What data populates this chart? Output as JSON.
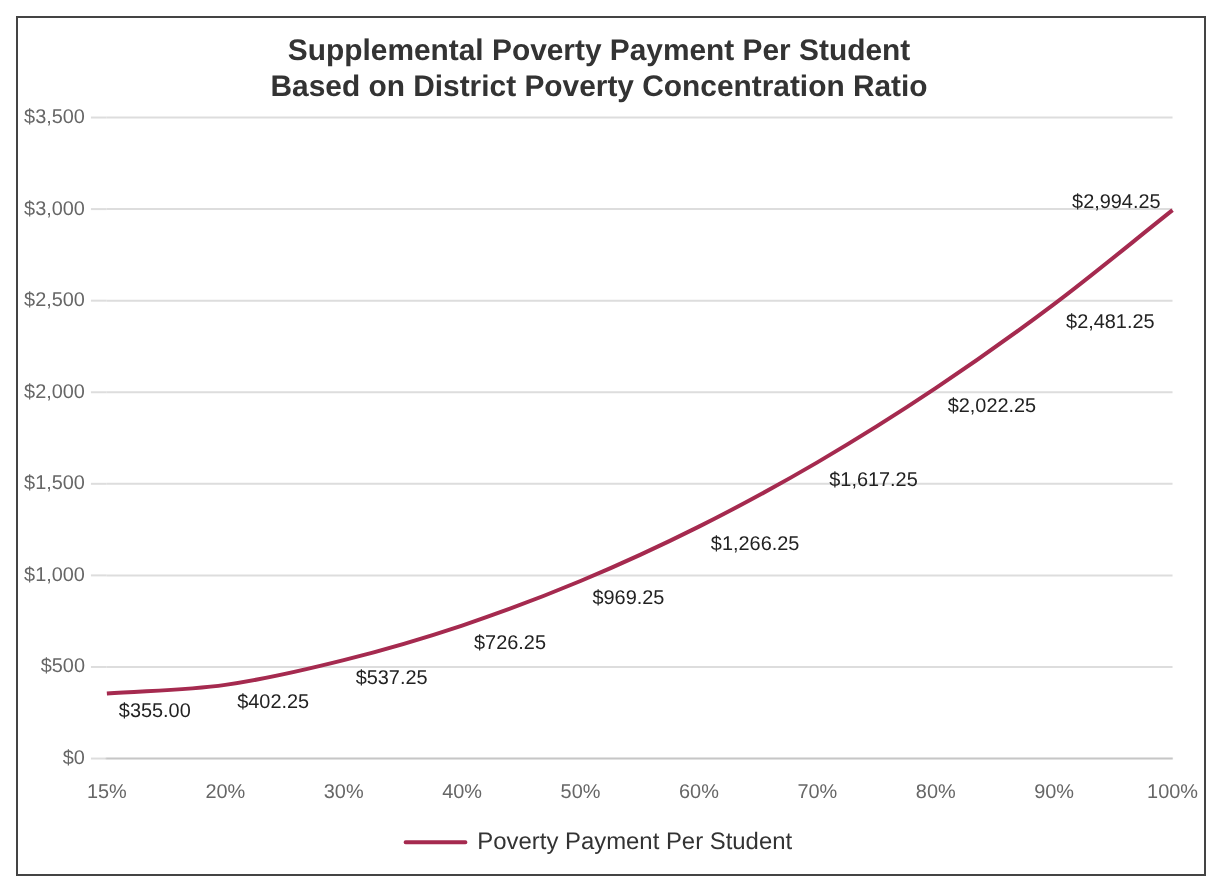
{
  "chart_data": {
    "type": "line",
    "title": "Supplemental Poverty Payment Per Student\nBased on District Poverty Concentration Ratio",
    "categories": [
      "15%",
      "20%",
      "30%",
      "40%",
      "50%",
      "60%",
      "70%",
      "80%",
      "90%",
      "100%"
    ],
    "series": [
      {
        "name": "Poverty Payment Per Student",
        "color": "#a52a4f",
        "values": [
          355,
          402.25,
          537.25,
          726.25,
          969.25,
          1266.25,
          1617.25,
          2022.25,
          2481.25,
          2994.25
        ],
        "value_labels": [
          "$355.00",
          "$402.25",
          "$537.25",
          "$726.25",
          "$969.25",
          "$1,266.25",
          "$1,617.25",
          "$2,022.25",
          "$2,481.25",
          "$2,994.25"
        ]
      }
    ],
    "ylim": [
      0,
      3500
    ],
    "yticks": [
      {
        "value": 0,
        "label": "$0"
      },
      {
        "value": 500,
        "label": "$500"
      },
      {
        "value": 1000,
        "label": "$1,000"
      },
      {
        "value": 1500,
        "label": "$1,500"
      },
      {
        "value": 2000,
        "label": "$2,000"
      },
      {
        "value": 2500,
        "label": "$2,500"
      },
      {
        "value": 3000,
        "label": "$3,000"
      },
      {
        "value": 3500,
        "label": "$3,500"
      }
    ],
    "grid": "y",
    "legend": "bottom",
    "marker": "none",
    "line_style": "solid"
  }
}
